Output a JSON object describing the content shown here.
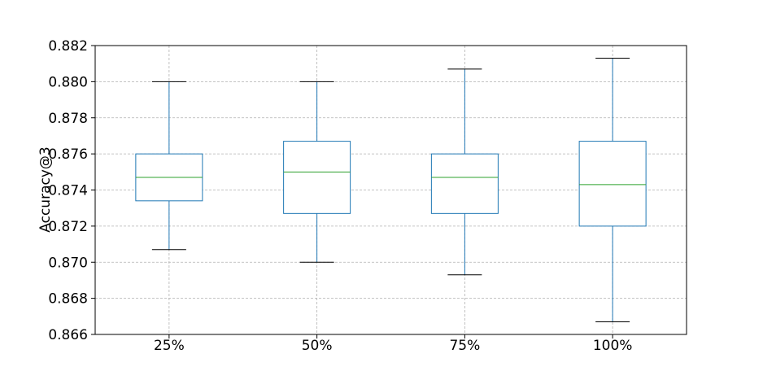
{
  "chart_data": {
    "type": "box",
    "title": "",
    "xlabel": "",
    "ylabel": "Accuracy@3",
    "ylim": [
      0.866,
      0.882
    ],
    "yticks": [
      "0.866",
      "0.868",
      "0.870",
      "0.872",
      "0.874",
      "0.876",
      "0.878",
      "0.880",
      "0.882"
    ],
    "grid": true,
    "categories": [
      "25%",
      "50%",
      "75%",
      "100%"
    ],
    "boxes": [
      {
        "whisker_low": 0.8707,
        "q1": 0.8734,
        "median": 0.8747,
        "q3": 0.876,
        "whisker_high": 0.88
      },
      {
        "whisker_low": 0.87,
        "q1": 0.8727,
        "median": 0.875,
        "q3": 0.8767,
        "whisker_high": 0.88
      },
      {
        "whisker_low": 0.8693,
        "q1": 0.8727,
        "median": 0.8747,
        "q3": 0.876,
        "whisker_high": 0.8807
      },
      {
        "whisker_low": 0.8667,
        "q1": 0.872,
        "median": 0.8743,
        "q3": 0.8767,
        "whisker_high": 0.8813
      }
    ],
    "colors": {
      "box": "#1f77b4",
      "median": "#2ca02c",
      "whisker_cap": "#000000",
      "grid": "#b0b0b0",
      "axes": "#000000"
    }
  }
}
